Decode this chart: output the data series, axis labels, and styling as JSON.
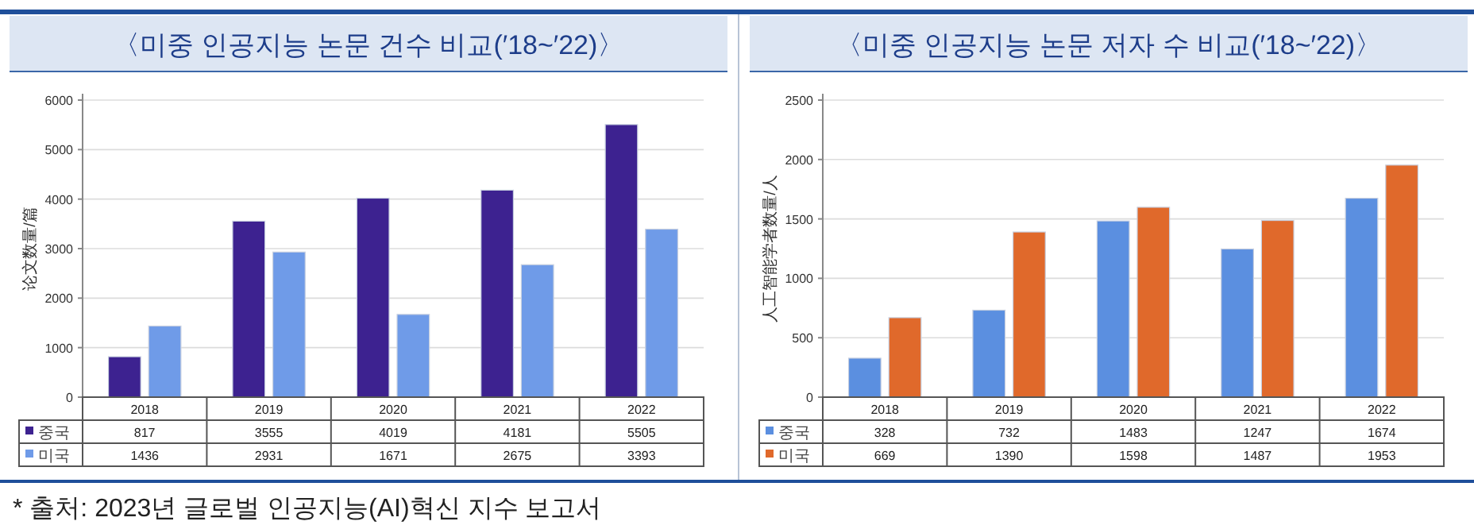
{
  "chart_data": [
    {
      "type": "bar",
      "title": "〈미중 인공지능 논문 건수 비교(′18~′22)〉",
      "ylabel": "论文数量/篇",
      "categories": [
        "2018",
        "2019",
        "2020",
        "2021",
        "2022"
      ],
      "series": [
        {
          "name": "중국",
          "color": "#3d2290",
          "values": [
            817,
            3555,
            4019,
            4181,
            5505
          ]
        },
        {
          "name": "미국",
          "color": "#6f9be8",
          "values": [
            1436,
            2931,
            1671,
            2675,
            3393
          ]
        }
      ],
      "ylim": [
        0,
        6000
      ],
      "yticks": [
        0,
        1000,
        2000,
        3000,
        4000,
        5000,
        6000
      ],
      "grid": "y",
      "legend": "bottom left",
      "data_labels": true,
      "annotations": [
        "* 출처: 2023년 글로벌 인공지능(AI)혁신 지수 보고서"
      ]
    },
    {
      "type": "bar",
      "title": "〈미중 인공지능 논문 저자 수 비교(′18~′22)〉",
      "ylabel": "人工智能学者数量/人",
      "categories": [
        "2018",
        "2019",
        "2020",
        "2021",
        "2022"
      ],
      "series": [
        {
          "name": "중국",
          "color": "#5b8fe0",
          "values": [
            328,
            732,
            1483,
            1247,
            1674
          ]
        },
        {
          "name": "미국",
          "color": "#e0692b",
          "values": [
            669,
            1390,
            1598,
            1487,
            1953
          ]
        }
      ],
      "ylim": [
        0,
        2500
      ],
      "yticks": [
        0,
        500,
        1000,
        1500,
        2000,
        2500
      ],
      "grid": "y",
      "legend": "bottom left",
      "data_labels": true
    }
  ]
}
